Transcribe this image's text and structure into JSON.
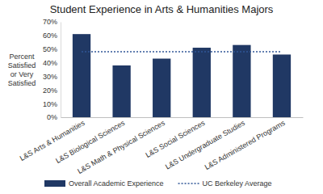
{
  "chart_data": {
    "type": "bar",
    "title": "Student Experience in Arts & Humanities Majors",
    "y_label": "Percent Satisfied or Very Satisfied",
    "categories": [
      "L&S Arts & Humanities",
      "L&S Biological Sciences",
      "L&S Math & Physical Sciences",
      "L&S Social Sciences",
      "L&S Undergraduate Studies",
      "L&S Administered Programs"
    ],
    "series": [
      {
        "name": "Overall Academic Experience",
        "type": "bar",
        "color": "#203864",
        "values": [
          61,
          38,
          43,
          51,
          53,
          46
        ]
      },
      {
        "name": "UC Berkeley Average",
        "type": "line",
        "line_style": "dotted",
        "color": "#2f5597",
        "values": [
          48,
          48,
          48,
          48,
          48,
          48
        ]
      }
    ],
    "ylim": [
      0,
      70
    ],
    "yticks": [
      {
        "value": 0,
        "label": "0%"
      },
      {
        "value": 10,
        "label": "10%"
      },
      {
        "value": 20,
        "label": "20%"
      },
      {
        "value": 30,
        "label": "30%"
      },
      {
        "value": 40,
        "label": "40%"
      },
      {
        "value": 50,
        "label": "50%"
      },
      {
        "value": 60,
        "label": "60%"
      },
      {
        "value": 70,
        "label": "70%"
      }
    ],
    "grid": false,
    "legend": "bottom"
  }
}
